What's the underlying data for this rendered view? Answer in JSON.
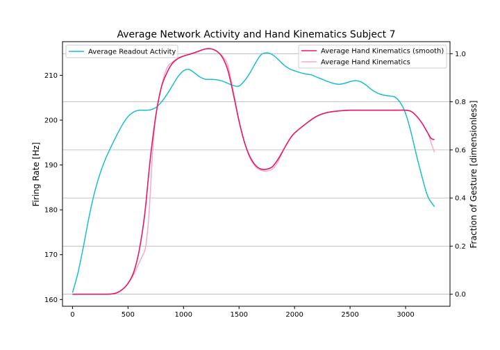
{
  "chart_data": {
    "type": "line",
    "title": "Average Network Activity and Hand Kinematics Subject 7",
    "xlabel": "",
    "ylabel_left": "Firing Rate [Hz]",
    "ylabel_right": "Fraction of Gesture [dimensionless]",
    "xlim": [
      -90,
      3400
    ],
    "ylim_left": [
      158.5,
      217.5
    ],
    "ylim_right": [
      -0.05,
      1.05
    ],
    "x_ticks": [
      0,
      500,
      1000,
      1500,
      2000,
      2500,
      3000
    ],
    "y_ticks_left": [
      160,
      170,
      180,
      190,
      200,
      210
    ],
    "y_ticks_right": [
      0.0,
      0.2,
      0.4,
      0.6,
      0.8,
      1.0
    ],
    "x_tick_labels": [
      "0",
      "500",
      "1000",
      "1500",
      "2000",
      "2500",
      "3000"
    ],
    "y_tick_labels_left": [
      "160",
      "170",
      "180",
      "190",
      "200",
      "210"
    ],
    "y_tick_labels_right": [
      "0.0",
      "0.2",
      "0.4",
      "0.6",
      "0.8",
      "1.0"
    ],
    "grid": "horizontal lines at right-axis ticks",
    "colors": {
      "readout": "#17becf",
      "smooth": "#e7156b",
      "raw": "#f7a8c8",
      "grid": "#b0b0b0"
    },
    "legend_left": {
      "placement": "upper-left",
      "entries": [
        "Average Readout Activity"
      ]
    },
    "legend_right": {
      "placement": "upper-right",
      "entries": [
        "Average Hand Kinematics (smooth)",
        "Average Hand Kinematics"
      ]
    },
    "series": [
      {
        "name": "Average Readout Activity",
        "axis": "left",
        "x": [
          0,
          50,
          100,
          150,
          200,
          250,
          300,
          350,
          400,
          450,
          500,
          550,
          600,
          650,
          700,
          750,
          800,
          850,
          900,
          950,
          1000,
          1050,
          1100,
          1150,
          1200,
          1250,
          1300,
          1350,
          1400,
          1450,
          1500,
          1550,
          1600,
          1650,
          1700,
          1750,
          1800,
          1850,
          1900,
          1950,
          2000,
          2050,
          2100,
          2150,
          2200,
          2250,
          2300,
          2350,
          2400,
          2450,
          2500,
          2550,
          2600,
          2650,
          2700,
          2750,
          2800,
          2850,
          2900,
          2950,
          3000,
          3050,
          3100,
          3150,
          3200,
          3260
        ],
        "values": [
          161.5,
          166.0,
          172.0,
          178.5,
          184.0,
          188.2,
          191.5,
          194.2,
          196.7,
          199.0,
          200.8,
          201.8,
          202.2,
          202.2,
          202.3,
          202.8,
          204.0,
          205.7,
          207.7,
          209.7,
          211.0,
          211.3,
          210.5,
          209.6,
          209.1,
          209.1,
          209.0,
          208.7,
          208.2,
          207.7,
          207.6,
          208.8,
          210.6,
          212.8,
          214.6,
          215.0,
          214.6,
          213.6,
          212.4,
          211.5,
          211.0,
          210.6,
          210.3,
          210.1,
          209.6,
          209.1,
          208.6,
          208.2,
          208.0,
          208.2,
          208.6,
          208.8,
          208.5,
          207.7,
          206.7,
          206.0,
          205.6,
          205.4,
          205.2,
          204.0,
          201.5,
          197.2,
          192.0,
          187.2,
          183.0,
          180.7
        ]
      },
      {
        "name": "Average Hand Kinematics (smooth)",
        "axis": "right",
        "x": [
          0,
          100,
          200,
          300,
          350,
          400,
          450,
          500,
          550,
          600,
          650,
          700,
          750,
          800,
          850,
          900,
          950,
          1000,
          1050,
          1100,
          1150,
          1200,
          1250,
          1300,
          1350,
          1400,
          1450,
          1500,
          1550,
          1600,
          1650,
          1700,
          1750,
          1800,
          1850,
          1900,
          1950,
          2000,
          2100,
          2200,
          2300,
          2400,
          2500,
          2600,
          2700,
          2800,
          2900,
          3000,
          3050,
          3100,
          3150,
          3200,
          3230,
          3260
        ],
        "values": [
          0.0,
          0.0,
          0.0,
          0.0,
          0.001,
          0.006,
          0.02,
          0.045,
          0.09,
          0.18,
          0.33,
          0.56,
          0.74,
          0.86,
          0.92,
          0.96,
          0.98,
          0.99,
          0.997,
          1.004,
          1.013,
          1.02,
          1.02,
          1.01,
          0.985,
          0.93,
          0.83,
          0.72,
          0.63,
          0.57,
          0.535,
          0.52,
          0.52,
          0.53,
          0.56,
          0.6,
          0.64,
          0.67,
          0.708,
          0.74,
          0.756,
          0.762,
          0.765,
          0.765,
          0.765,
          0.765,
          0.765,
          0.765,
          0.76,
          0.74,
          0.71,
          0.67,
          0.648,
          0.643
        ]
      },
      {
        "name": "Average Hand Kinematics",
        "axis": "right",
        "x": [
          0,
          100,
          200,
          300,
          350,
          400,
          450,
          500,
          550,
          600,
          630,
          660,
          690,
          720,
          750,
          800,
          850,
          900,
          950,
          1000,
          1050,
          1100,
          1150,
          1200,
          1250,
          1300,
          1350,
          1400,
          1450,
          1500,
          1550,
          1600,
          1650,
          1700,
          1750,
          1800,
          1850,
          1900,
          1950,
          2000,
          2100,
          2200,
          2300,
          2400,
          2500,
          2600,
          2700,
          2800,
          2900,
          3000,
          3050,
          3100,
          3150,
          3200,
          3230,
          3260
        ],
        "values": [
          0.0,
          0.0,
          0.0,
          0.0,
          0.001,
          0.006,
          0.02,
          0.045,
          0.08,
          0.13,
          0.16,
          0.2,
          0.34,
          0.58,
          0.74,
          0.86,
          0.94,
          0.965,
          0.98,
          0.99,
          0.998,
          1.005,
          1.012,
          1.02,
          1.02,
          1.01,
          0.99,
          0.95,
          0.84,
          0.72,
          0.63,
          0.565,
          0.53,
          0.515,
          0.512,
          0.52,
          0.55,
          0.6,
          0.64,
          0.67,
          0.708,
          0.74,
          0.756,
          0.762,
          0.765,
          0.765,
          0.765,
          0.765,
          0.765,
          0.765,
          0.76,
          0.74,
          0.71,
          0.67,
          0.63,
          0.59
        ]
      }
    ]
  }
}
